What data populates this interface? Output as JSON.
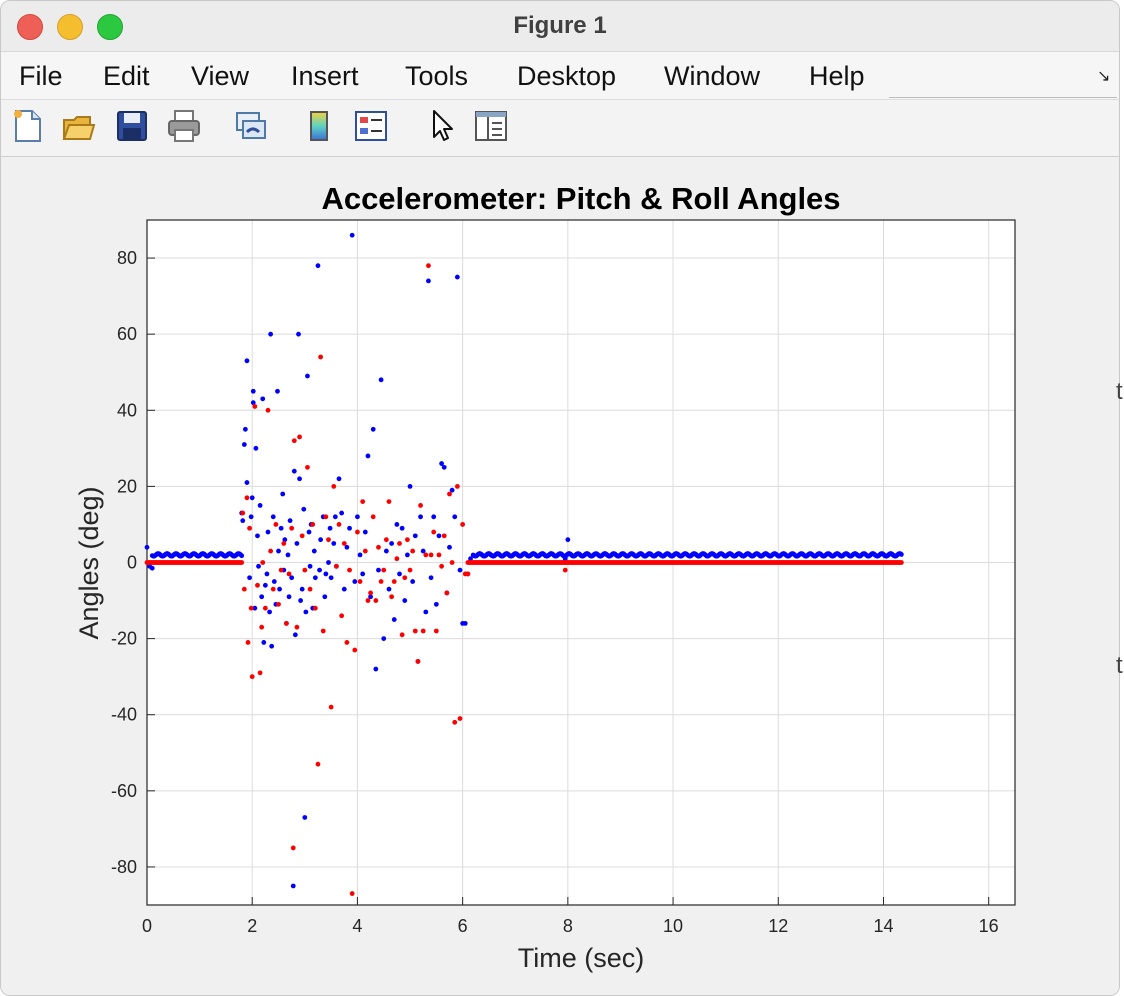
{
  "window": {
    "title": "Figure 1"
  },
  "menu": [
    "File",
    "Edit",
    "View",
    "Insert",
    "Tools",
    "Desktop",
    "Window",
    "Help"
  ],
  "toolbar": {
    "icons": [
      "new-figure-icon",
      "open-file-icon",
      "save-icon",
      "print-icon",
      "link-plot-icon",
      "colorbar-icon",
      "legend-icon",
      "edit-plot-icon",
      "property-inspector-icon"
    ]
  },
  "chart_data": {
    "type": "scatter",
    "title": "Accelerometer: Pitch & Roll Angles",
    "xlabel": "Time (sec)",
    "ylabel": "Angles (deg)",
    "xlim": [
      0,
      16.5
    ],
    "ylim": [
      -90,
      90
    ],
    "xticks": [
      0,
      2,
      4,
      6,
      8,
      10,
      12,
      14,
      16
    ],
    "yticks": [
      80,
      60,
      40,
      20,
      0,
      -20,
      -40,
      -60,
      -80
    ],
    "grid": true,
    "colors": {
      "blue": "#0000ff",
      "red": "#ff0000"
    },
    "series": [
      {
        "color": "blue",
        "baseline": {
          "x_ranges": [
            [
              0.1,
              1.8
            ],
            [
              6.2,
              14.35
            ]
          ],
          "y": 2
        },
        "points": [
          [
            0.0,
            4
          ],
          [
            0.05,
            -1
          ],
          [
            0.1,
            -1.5
          ],
          [
            1.8,
            13
          ],
          [
            1.82,
            11
          ],
          [
            1.85,
            31
          ],
          [
            1.87,
            35
          ],
          [
            1.9,
            53
          ],
          [
            1.9,
            21
          ],
          [
            1.95,
            -4
          ],
          [
            1.98,
            12
          ],
          [
            2.0,
            17
          ],
          [
            2.02,
            42
          ],
          [
            2.02,
            45
          ],
          [
            2.05,
            -12
          ],
          [
            2.07,
            30
          ],
          [
            2.1,
            7
          ],
          [
            2.12,
            -1
          ],
          [
            2.15,
            15
          ],
          [
            2.18,
            -9
          ],
          [
            2.2,
            43
          ],
          [
            2.22,
            -21
          ],
          [
            2.25,
            -6
          ],
          [
            2.28,
            -3
          ],
          [
            2.3,
            8
          ],
          [
            2.33,
            -13
          ],
          [
            2.35,
            60
          ],
          [
            2.37,
            -22
          ],
          [
            2.4,
            12
          ],
          [
            2.42,
            -5
          ],
          [
            2.45,
            -11
          ],
          [
            2.48,
            45
          ],
          [
            2.5,
            3
          ],
          [
            2.52,
            -7
          ],
          [
            2.55,
            9
          ],
          [
            2.58,
            18
          ],
          [
            2.6,
            -2
          ],
          [
            2.62,
            6
          ],
          [
            2.65,
            -16
          ],
          [
            2.68,
            2
          ],
          [
            2.7,
            -9
          ],
          [
            2.72,
            11
          ],
          [
            2.75,
            -4
          ],
          [
            2.78,
            -85
          ],
          [
            2.8,
            24
          ],
          [
            2.82,
            -19
          ],
          [
            2.85,
            5
          ],
          [
            2.88,
            60
          ],
          [
            2.9,
            22
          ],
          [
            2.92,
            -10
          ],
          [
            2.95,
            -7
          ],
          [
            2.98,
            14
          ],
          [
            3.0,
            -67
          ],
          [
            3.02,
            -13
          ],
          [
            3.05,
            49
          ],
          [
            3.08,
            8
          ],
          [
            3.1,
            -1
          ],
          [
            3.12,
            10
          ],
          [
            3.15,
            -12
          ],
          [
            3.18,
            3
          ],
          [
            3.2,
            -4
          ],
          [
            3.25,
            78
          ],
          [
            3.28,
            -2
          ],
          [
            3.3,
            6
          ],
          [
            3.35,
            12
          ],
          [
            3.38,
            -9
          ],
          [
            3.4,
            -3
          ],
          [
            3.45,
            0
          ],
          [
            3.48,
            9
          ],
          [
            3.5,
            -4
          ],
          [
            3.55,
            5
          ],
          [
            3.58,
            12
          ],
          [
            3.6,
            -1
          ],
          [
            3.65,
            22
          ],
          [
            3.7,
            13
          ],
          [
            3.75,
            -7
          ],
          [
            3.8,
            4
          ],
          [
            3.85,
            9
          ],
          [
            3.9,
            86
          ],
          [
            3.95,
            -5
          ],
          [
            4.0,
            12
          ],
          [
            4.05,
            2
          ],
          [
            4.1,
            -3
          ],
          [
            4.15,
            8
          ],
          [
            4.2,
            28
          ],
          [
            4.25,
            -9
          ],
          [
            4.3,
            35
          ],
          [
            4.35,
            -28
          ],
          [
            4.4,
            -2
          ],
          [
            4.45,
            48
          ],
          [
            4.5,
            -20
          ],
          [
            4.55,
            3
          ],
          [
            4.6,
            -7
          ],
          [
            4.65,
            5
          ],
          [
            4.7,
            -15
          ],
          [
            4.75,
            10
          ],
          [
            4.8,
            -3
          ],
          [
            4.85,
            9
          ],
          [
            4.9,
            -10
          ],
          [
            4.95,
            2
          ],
          [
            5.0,
            20
          ],
          [
            5.05,
            -5
          ],
          [
            5.1,
            7
          ],
          [
            5.15,
            -26
          ],
          [
            5.2,
            12
          ],
          [
            5.25,
            3
          ],
          [
            5.3,
            -13
          ],
          [
            5.35,
            74
          ],
          [
            5.4,
            -4
          ],
          [
            5.45,
            12
          ],
          [
            5.5,
            -11
          ],
          [
            5.55,
            7
          ],
          [
            5.6,
            26
          ],
          [
            5.65,
            25
          ],
          [
            5.7,
            -8
          ],
          [
            5.75,
            4
          ],
          [
            5.8,
            19
          ],
          [
            5.85,
            12
          ],
          [
            5.9,
            75
          ],
          [
            5.95,
            -2
          ],
          [
            6.0,
            -16
          ],
          [
            6.05,
            -16
          ],
          [
            6.1,
            -3
          ],
          [
            6.15,
            1
          ],
          [
            7.95,
            1
          ],
          [
            8.0,
            6
          ]
        ]
      },
      {
        "color": "red",
        "baseline": {
          "x_ranges": [
            [
              0.0,
              1.8
            ],
            [
              6.1,
              14.35
            ]
          ],
          "y": 0
        },
        "points": [
          [
            1.82,
            13
          ],
          [
            1.85,
            -7
          ],
          [
            1.9,
            17
          ],
          [
            1.92,
            -21
          ],
          [
            1.95,
            9
          ],
          [
            1.98,
            -12
          ],
          [
            2.0,
            -30
          ],
          [
            2.05,
            41
          ],
          [
            2.1,
            -6
          ],
          [
            2.15,
            -29
          ],
          [
            2.18,
            -17
          ],
          [
            2.2,
            0
          ],
          [
            2.25,
            -12
          ],
          [
            2.3,
            40
          ],
          [
            2.35,
            3
          ],
          [
            2.4,
            -7
          ],
          [
            2.45,
            10
          ],
          [
            2.5,
            -11
          ],
          [
            2.55,
            -2
          ],
          [
            2.6,
            5
          ],
          [
            2.65,
            -16
          ],
          [
            2.7,
            -3
          ],
          [
            2.75,
            9
          ],
          [
            2.78,
            -75
          ],
          [
            2.8,
            32
          ],
          [
            2.85,
            -17
          ],
          [
            2.9,
            33
          ],
          [
            2.95,
            7
          ],
          [
            3.0,
            -2
          ],
          [
            3.05,
            25
          ],
          [
            3.1,
            -7
          ],
          [
            3.15,
            10
          ],
          [
            3.2,
            -12
          ],
          [
            3.25,
            -53
          ],
          [
            3.3,
            54
          ],
          [
            3.35,
            -18
          ],
          [
            3.4,
            12
          ],
          [
            3.45,
            6
          ],
          [
            3.5,
            -38
          ],
          [
            3.55,
            20
          ],
          [
            3.6,
            -1
          ],
          [
            3.65,
            10
          ],
          [
            3.7,
            -14
          ],
          [
            3.75,
            5
          ],
          [
            3.8,
            -21
          ],
          [
            3.85,
            -2
          ],
          [
            3.9,
            -87
          ],
          [
            3.95,
            -23
          ],
          [
            4.0,
            8
          ],
          [
            4.05,
            -5
          ],
          [
            4.1,
            16
          ],
          [
            4.15,
            3
          ],
          [
            4.2,
            -10
          ],
          [
            4.25,
            -8
          ],
          [
            4.3,
            12
          ],
          [
            4.35,
            -10
          ],
          [
            4.4,
            4
          ],
          [
            4.45,
            -5
          ],
          [
            4.5,
            -2
          ],
          [
            4.55,
            6
          ],
          [
            4.6,
            16
          ],
          [
            4.65,
            -9
          ],
          [
            4.7,
            -5
          ],
          [
            4.75,
            1
          ],
          [
            4.8,
            5
          ],
          [
            4.85,
            -19
          ],
          [
            4.9,
            -4
          ],
          [
            4.95,
            6
          ],
          [
            5.0,
            -2
          ],
          [
            5.05,
            3
          ],
          [
            5.1,
            -18
          ],
          [
            5.15,
            -26
          ],
          [
            5.2,
            15
          ],
          [
            5.25,
            -18
          ],
          [
            5.3,
            2
          ],
          [
            5.35,
            78
          ],
          [
            5.4,
            2
          ],
          [
            5.45,
            8
          ],
          [
            5.5,
            -18
          ],
          [
            5.55,
            2
          ],
          [
            5.6,
            -1
          ],
          [
            5.65,
            7
          ],
          [
            5.7,
            -8
          ],
          [
            5.75,
            18
          ],
          [
            5.8,
            0
          ],
          [
            5.85,
            -42
          ],
          [
            5.9,
            20
          ],
          [
            5.95,
            -41
          ],
          [
            6.0,
            10
          ],
          [
            6.05,
            -3
          ],
          [
            6.1,
            -3
          ],
          [
            7.95,
            -2
          ]
        ]
      }
    ]
  }
}
